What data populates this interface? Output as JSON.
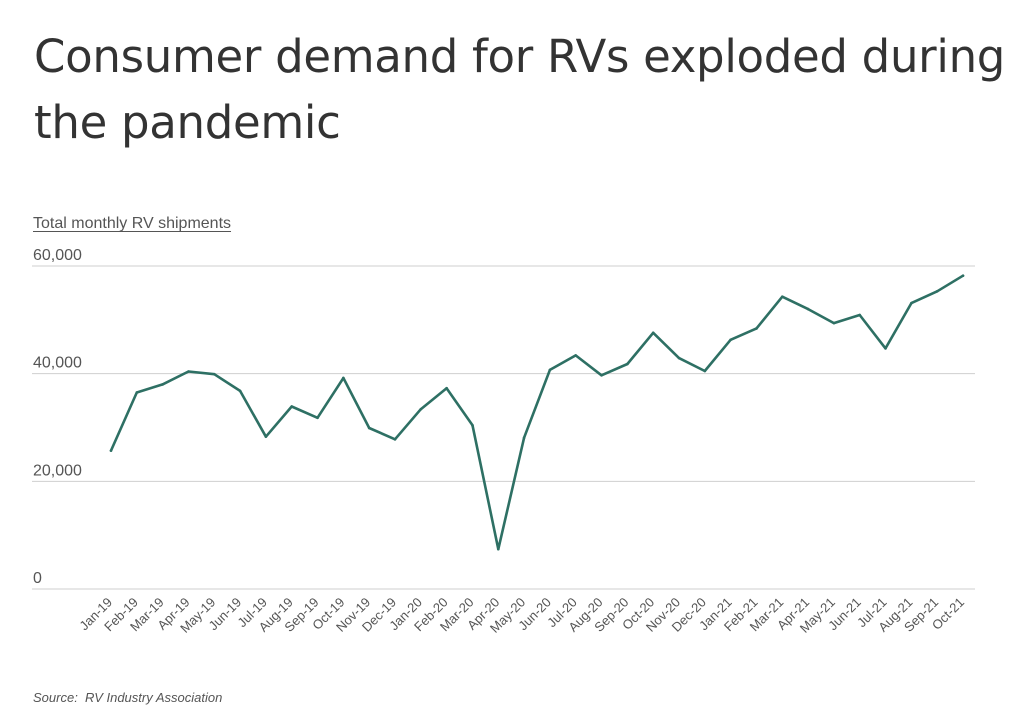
{
  "title": "Consumer demand for RVs exploded during the pandemic",
  "source": {
    "prefix": "Source:",
    "name": "RV Industry Association"
  },
  "chart_data": {
    "type": "line",
    "subtitle": "Total monthly RV shipments",
    "xlabel": "",
    "ylabel": "",
    "ylim": [
      0,
      60000
    ],
    "yticks": [
      0,
      20000,
      40000,
      60000
    ],
    "ytick_labels": [
      "0",
      "20,000",
      "40,000",
      "60,000"
    ],
    "grid": true,
    "legend": "none",
    "line_color": "#2e7064",
    "categories": [
      "Jan-19",
      "Feb-19",
      "Mar-19",
      "Apr-19",
      "May-19",
      "Jun-19",
      "Jul-19",
      "Aug-19",
      "Sep-19",
      "Oct-19",
      "Nov-19",
      "Dec-19",
      "Jan-20",
      "Feb-20",
      "Mar-20",
      "Apr-20",
      "May-20",
      "Jun-20",
      "Jul-20",
      "Aug-20",
      "Sep-20",
      "Oct-20",
      "Nov-20",
      "Dec-20",
      "Jan-21",
      "Feb-21",
      "Mar-21",
      "Apr-21",
      "May-21",
      "Jun-21",
      "Jul-21",
      "Aug-21",
      "Sep-21",
      "Oct-21"
    ],
    "series": [
      {
        "values": [
          25700,
          36500,
          38000,
          40400,
          39900,
          36800,
          28300,
          33900,
          31800,
          39200,
          29900,
          27800,
          33400,
          37300,
          30400,
          7400,
          28100,
          40700,
          43400,
          39700,
          41800,
          47600,
          42900,
          40500,
          46300,
          48400,
          54300,
          52000,
          49400,
          50900,
          44700,
          53100,
          55300,
          58200
        ]
      }
    ]
  }
}
